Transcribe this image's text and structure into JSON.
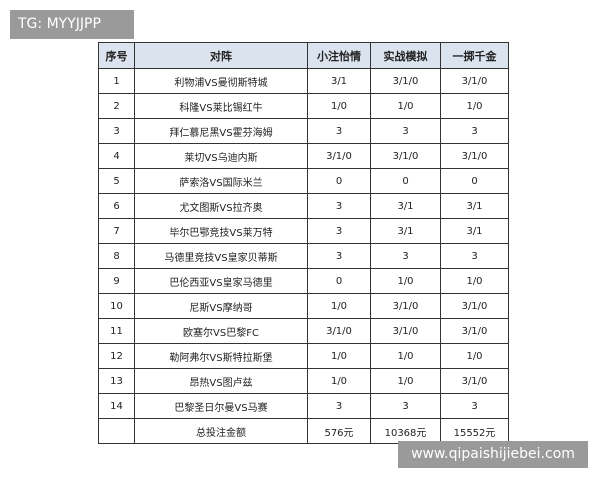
{
  "overlay_label": "TG: MYYJJPP",
  "watermark": "www.qipaishijiebei.com",
  "table": {
    "headers": [
      "序号",
      "对阵",
      "小注怡情",
      "实战模拟",
      "一掷千金"
    ],
    "rows": [
      [
        "1",
        "利物浦VS曼彻斯特城",
        "3/1",
        "3/1/0",
        "3/1/0"
      ],
      [
        "2",
        "科隆VS莱比锡红牛",
        "1/0",
        "1/0",
        "1/0"
      ],
      [
        "3",
        "拜仁慕尼黑VS霍芬海姆",
        "3",
        "3",
        "3"
      ],
      [
        "4",
        "莱切VS乌迪内斯",
        "3/1/0",
        "3/1/0",
        "3/1/0"
      ],
      [
        "5",
        "萨索洛VS国际米兰",
        "0",
        "0",
        "0"
      ],
      [
        "6",
        "尤文图斯VS拉齐奥",
        "3",
        "3/1",
        "3/1"
      ],
      [
        "7",
        "毕尔巴鄂竞技VS莱万特",
        "3",
        "3/1",
        "3/1"
      ],
      [
        "8",
        "马德里竞技VS皇家贝蒂斯",
        "3",
        "3",
        "3"
      ],
      [
        "9",
        "巴伦西亚VS皇家马德里",
        "0",
        "1/0",
        "1/0"
      ],
      [
        "10",
        "尼斯VS摩纳哥",
        "1/0",
        "3/1/0",
        "3/1/0"
      ],
      [
        "11",
        "欧塞尔VS巴黎FC",
        "3/1/0",
        "3/1/0",
        "3/1/0"
      ],
      [
        "12",
        "勒阿弗尔VS斯特拉斯堡",
        "1/0",
        "1/0",
        "1/0"
      ],
      [
        "13",
        "昂热VS图卢兹",
        "1/0",
        "1/0",
        "3/1/0"
      ],
      [
        "14",
        "巴黎圣日尔曼VS马赛",
        "3",
        "3",
        "3"
      ]
    ],
    "total": [
      "",
      "总投注金额",
      "576元",
      "10368元",
      "15552元"
    ]
  }
}
